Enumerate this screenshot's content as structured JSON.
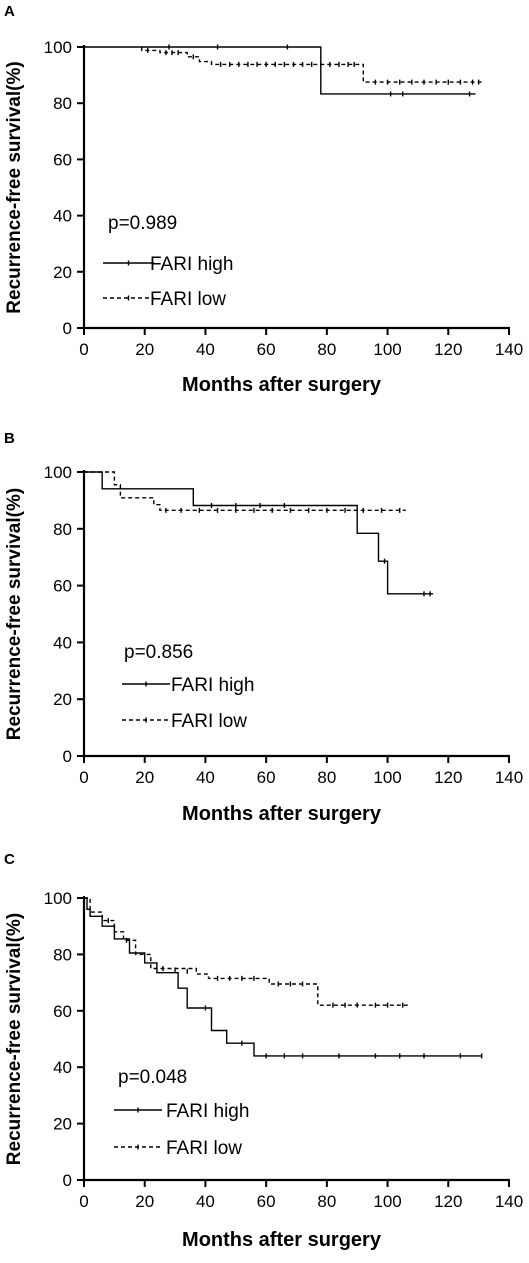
{
  "chart_data": [
    {
      "type": "line",
      "panel": "A",
      "xlabel": "Months after surgery",
      "ylabel": "Recurrence-free survival(%)",
      "xlim": [
        0,
        140
      ],
      "ylim": [
        0,
        100
      ],
      "xticks": [
        "0",
        "20",
        "40",
        "60",
        "80",
        "100",
        "120",
        "140"
      ],
      "yticks": [
        "0",
        "20",
        "40",
        "60",
        "80",
        "100"
      ],
      "annotation": "p=0.989",
      "series": [
        {
          "name": "FARI high",
          "style": "solid",
          "steps": [
            [
              0,
              100
            ],
            [
              78,
              100
            ],
            [
              78,
              83.3
            ],
            [
              129,
              83.3
            ]
          ],
          "censored": [
            [
              28,
              100
            ],
            [
              44,
              100
            ],
            [
              67,
              100
            ],
            [
              101,
              83.3
            ],
            [
              105,
              83.3
            ],
            [
              127,
              83.3
            ]
          ]
        },
        {
          "name": "FARI low",
          "style": "dashed",
          "steps": [
            [
              19,
              100
            ],
            [
              19,
              98.8
            ],
            [
              25,
              98.8
            ],
            [
              25,
              98
            ],
            [
              34,
              98
            ],
            [
              34,
              96.5
            ],
            [
              38,
              96.5
            ],
            [
              38,
              94.8
            ],
            [
              42,
              94.8
            ],
            [
              42,
              93.8
            ],
            [
              92,
              93.8
            ],
            [
              92,
              87.5
            ],
            [
              131,
              87.5
            ]
          ],
          "censored": [
            [
              21,
              98.8
            ],
            [
              27,
              98
            ],
            [
              29,
              98
            ],
            [
              31,
              98
            ],
            [
              36,
              96.5
            ],
            [
              45,
              93.8
            ],
            [
              48,
              93.8
            ],
            [
              51,
              93.8
            ],
            [
              54,
              93.8
            ],
            [
              57,
              93.8
            ],
            [
              60,
              93.8
            ],
            [
              63,
              93.8
            ],
            [
              66,
              93.8
            ],
            [
              69,
              93.8
            ],
            [
              72,
              93.8
            ],
            [
              75,
              93.8
            ],
            [
              78,
              93.8
            ],
            [
              81,
              93.8
            ],
            [
              84,
              93.8
            ],
            [
              87,
              93.8
            ],
            [
              89,
              93.8
            ],
            [
              96,
              87.5
            ],
            [
              100,
              87.5
            ],
            [
              104,
              87.5
            ],
            [
              108,
              87.5
            ],
            [
              112,
              87.5
            ],
            [
              116,
              87.5
            ],
            [
              120,
              87.5
            ],
            [
              124,
              87.5
            ],
            [
              128,
              87.5
            ],
            [
              130,
              87.5
            ]
          ]
        }
      ]
    },
    {
      "type": "line",
      "panel": "B",
      "xlabel": "Months after surgery",
      "ylabel": "Recurrence-free survival(%)",
      "xlim": [
        0,
        140
      ],
      "ylim": [
        0,
        100
      ],
      "xticks": [
        "0",
        "20",
        "40",
        "60",
        "80",
        "100",
        "120",
        "140"
      ],
      "yticks": [
        "0",
        "20",
        "40",
        "60",
        "80",
        "100"
      ],
      "annotation": "p=0.856",
      "series": [
        {
          "name": "FARI high",
          "style": "solid",
          "steps": [
            [
              0,
              100
            ],
            [
              6,
              100
            ],
            [
              6,
              94.1
            ],
            [
              36,
              94.1
            ],
            [
              36,
              88.2
            ],
            [
              90,
              88.2
            ],
            [
              90,
              78.4
            ],
            [
              97,
              78.4
            ],
            [
              97,
              68.6
            ],
            [
              100,
              68.6
            ],
            [
              100,
              57.1
            ],
            [
              115,
              57.1
            ]
          ],
          "censored": [
            [
              42,
              88.2
            ],
            [
              50,
              88.2
            ],
            [
              58,
              88.2
            ],
            [
              66,
              88.2
            ],
            [
              99,
              68.6
            ],
            [
              112,
              57.1
            ],
            [
              114,
              57.1
            ]
          ]
        },
        {
          "name": "FARI low",
          "style": "dashed",
          "steps": [
            [
              0,
              100
            ],
            [
              10,
              100
            ],
            [
              10,
              95.5
            ],
            [
              12,
              95.5
            ],
            [
              12,
              90.9
            ],
            [
              23,
              90.9
            ],
            [
              23,
              88.5
            ],
            [
              25,
              88.5
            ],
            [
              25,
              86.5
            ],
            [
              106,
              86.5
            ]
          ],
          "censored": [
            [
              27,
              86.5
            ],
            [
              32,
              86.5
            ],
            [
              38,
              86.5
            ],
            [
              44,
              86.5
            ],
            [
              50,
              86.5
            ],
            [
              56,
              86.5
            ],
            [
              62,
              86.5
            ],
            [
              68,
              86.5
            ],
            [
              74,
              86.5
            ],
            [
              80,
              86.5
            ],
            [
              86,
              86.5
            ],
            [
              92,
              86.5
            ],
            [
              98,
              86.5
            ],
            [
              104,
              86.5
            ]
          ]
        }
      ]
    },
    {
      "type": "line",
      "panel": "C",
      "xlabel": "Months after surgery",
      "ylabel": "Recurrence-free survival(%)",
      "xlim": [
        0,
        140
      ],
      "ylim": [
        0,
        100
      ],
      "xticks": [
        "0",
        "20",
        "40",
        "60",
        "80",
        "100",
        "120",
        "140"
      ],
      "yticks": [
        "0",
        "20",
        "40",
        "60",
        "80",
        "100"
      ],
      "annotation": "p=0.048",
      "series": [
        {
          "name": "FARI high",
          "style": "solid",
          "steps": [
            [
              0,
              100
            ],
            [
              1,
              100
            ],
            [
              1,
              96
            ],
            [
              2,
              96
            ],
            [
              2,
              93.5
            ],
            [
              6,
              93.5
            ],
            [
              6,
              90
            ],
            [
              10,
              90
            ],
            [
              10,
              85.5
            ],
            [
              15,
              85.5
            ],
            [
              15,
              80.5
            ],
            [
              20,
              80.5
            ],
            [
              20,
              77
            ],
            [
              24,
              77
            ],
            [
              24,
              73.5
            ],
            [
              31,
              73.5
            ],
            [
              31,
              68
            ],
            [
              34,
              68
            ],
            [
              34,
              61
            ],
            [
              42,
              61
            ],
            [
              42,
              53
            ],
            [
              47,
              53
            ],
            [
              47,
              48.5
            ],
            [
              56,
              48.5
            ],
            [
              56,
              44
            ],
            [
              131,
              44
            ]
          ],
          "censored": [
            [
              40,
              61
            ],
            [
              52,
              48.5
            ],
            [
              60,
              44
            ],
            [
              66,
              44
            ],
            [
              72,
              44
            ],
            [
              84,
              44
            ],
            [
              96,
              44
            ],
            [
              104,
              44
            ],
            [
              112,
              44
            ],
            [
              124,
              44
            ],
            [
              131,
              44
            ]
          ]
        },
        {
          "name": "FARI low",
          "style": "dashed",
          "steps": [
            [
              0,
              100
            ],
            [
              2,
              100
            ],
            [
              2,
              95
            ],
            [
              6,
              95
            ],
            [
              6,
              92
            ],
            [
              10,
              92
            ],
            [
              10,
              88
            ],
            [
              13,
              88
            ],
            [
              13,
              85
            ],
            [
              17,
              85
            ],
            [
              17,
              80
            ],
            [
              22,
              80
            ],
            [
              22,
              75
            ],
            [
              37,
              75
            ],
            [
              37,
              73
            ],
            [
              41,
              73
            ],
            [
              41,
              71.5
            ],
            [
              61,
              71.5
            ],
            [
              61,
              69.5
            ],
            [
              77,
              69.5
            ],
            [
              77,
              62
            ],
            [
              107,
              62
            ]
          ],
          "censored": [
            [
              8,
              92
            ],
            [
              14,
              85
            ],
            [
              26,
              75
            ],
            [
              30,
              74.5
            ],
            [
              34,
              74
            ],
            [
              44,
              71.5
            ],
            [
              48,
              71.5
            ],
            [
              52,
              71.5
            ],
            [
              56,
              71.5
            ],
            [
              64,
              69.5
            ],
            [
              68,
              69.5
            ],
            [
              72,
              69.5
            ],
            [
              82,
              62
            ],
            [
              86,
              62
            ],
            [
              90,
              62
            ],
            [
              96,
              62
            ],
            [
              100,
              62
            ],
            [
              105,
              62
            ]
          ]
        }
      ]
    }
  ]
}
